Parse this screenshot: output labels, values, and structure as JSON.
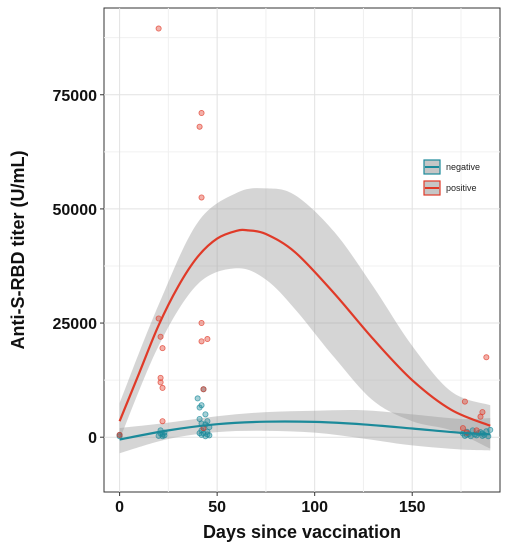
{
  "chart_data": {
    "type": "scatter",
    "xlabel": "Days since vaccination",
    "ylabel": "Anti-S-RBD titer (U/mL)",
    "xlim": [
      -8,
      195
    ],
    "ylim": [
      -12000,
      94000
    ],
    "x_ticks": [
      0,
      50,
      100,
      150
    ],
    "y_ticks": [
      0,
      25000,
      50000,
      75000
    ],
    "x_tick_labels": [
      "0",
      "50",
      "100",
      "150"
    ],
    "y_tick_labels": [
      "0",
      "25000",
      "50000",
      "75000"
    ],
    "grid": true,
    "legend_position": "right",
    "series": [
      {
        "name": "negative",
        "color": "#1b8a9a",
        "points": [
          [
            0,
            200
          ],
          [
            0,
            500
          ],
          [
            20,
            300
          ],
          [
            21,
            800
          ],
          [
            21,
            1500
          ],
          [
            22,
            200
          ],
          [
            22,
            600
          ],
          [
            23,
            1000
          ],
          [
            23,
            400
          ],
          [
            40,
            8500
          ],
          [
            41,
            6500
          ],
          [
            41,
            4000
          ],
          [
            42,
            3000
          ],
          [
            42,
            1500
          ],
          [
            42,
            500
          ],
          [
            43,
            10500
          ],
          [
            43,
            2000
          ],
          [
            43,
            800
          ],
          [
            44,
            200
          ],
          [
            44,
            2800
          ],
          [
            44,
            5000
          ],
          [
            45,
            1200
          ],
          [
            45,
            3500
          ],
          [
            45,
            600
          ],
          [
            46,
            2200
          ],
          [
            46,
            400
          ],
          [
            41,
            900
          ],
          [
            42,
            7000
          ],
          [
            176,
            800
          ],
          [
            177,
            300
          ],
          [
            178,
            1200
          ],
          [
            178,
            500
          ],
          [
            179,
            700
          ],
          [
            180,
            200
          ],
          [
            181,
            1500
          ],
          [
            182,
            600
          ],
          [
            183,
            400
          ],
          [
            184,
            900
          ],
          [
            185,
            1100
          ],
          [
            186,
            300
          ],
          [
            186,
            800
          ],
          [
            187,
            500
          ],
          [
            188,
            1300
          ],
          [
            189,
            200
          ],
          [
            190,
            1600
          ]
        ],
        "trend": [
          [
            0,
            -500
          ],
          [
            25,
            1500
          ],
          [
            50,
            2850
          ],
          [
            75,
            3400
          ],
          [
            100,
            3350
          ],
          [
            125,
            2800
          ],
          [
            150,
            1900
          ],
          [
            175,
            950
          ],
          [
            190,
            650
          ]
        ],
        "band_upper": [
          [
            0,
            2000
          ],
          [
            25,
            3200
          ],
          [
            50,
            4600
          ],
          [
            75,
            5500
          ],
          [
            100,
            5800
          ],
          [
            125,
            5900
          ],
          [
            150,
            5000
          ],
          [
            175,
            4000
          ],
          [
            190,
            4200
          ]
        ],
        "band_lower": [
          [
            0,
            -3500
          ],
          [
            25,
            -400
          ],
          [
            50,
            1100
          ],
          [
            75,
            1400
          ],
          [
            100,
            1000
          ],
          [
            125,
            -300
          ],
          [
            150,
            -1800
          ],
          [
            175,
            -2700
          ],
          [
            190,
            -2900
          ]
        ]
      },
      {
        "name": "positive",
        "color": "#e03a28",
        "points": [
          [
            0,
            500
          ],
          [
            20,
            89500
          ],
          [
            20,
            26000
          ],
          [
            21,
            22000
          ],
          [
            21,
            13000
          ],
          [
            21,
            12000
          ],
          [
            22,
            10800
          ],
          [
            22,
            19500
          ],
          [
            22,
            3500
          ],
          [
            41,
            68000
          ],
          [
            42,
            71000
          ],
          [
            42,
            52500
          ],
          [
            42,
            25000
          ],
          [
            42,
            21000
          ],
          [
            43,
            10500
          ],
          [
            45,
            21500
          ],
          [
            43,
            2000
          ],
          [
            176,
            2000
          ],
          [
            177,
            7800
          ],
          [
            178,
            1000
          ],
          [
            183,
            1500
          ],
          [
            185,
            4500
          ],
          [
            186,
            5500
          ],
          [
            188,
            17500
          ]
        ],
        "trend": [
          [
            0,
            3500
          ],
          [
            10,
            14000
          ],
          [
            20,
            24500
          ],
          [
            30,
            33000
          ],
          [
            40,
            39500
          ],
          [
            50,
            43500
          ],
          [
            60,
            45200
          ],
          [
            66,
            45300
          ],
          [
            75,
            44500
          ],
          [
            90,
            40500
          ],
          [
            110,
            31500
          ],
          [
            130,
            21500
          ],
          [
            150,
            12500
          ],
          [
            170,
            6000
          ],
          [
            190,
            2500
          ]
        ],
        "band_upper": [
          [
            0,
            7500
          ],
          [
            20,
            29000
          ],
          [
            40,
            47000
          ],
          [
            60,
            53500
          ],
          [
            75,
            54500
          ],
          [
            90,
            53000
          ],
          [
            110,
            45000
          ],
          [
            130,
            33000
          ],
          [
            150,
            20000
          ],
          [
            170,
            10000
          ],
          [
            190,
            7000
          ]
        ],
        "band_lower": [
          [
            0,
            -500
          ],
          [
            20,
            20000
          ],
          [
            40,
            33500
          ],
          [
            60,
            37000
          ],
          [
            75,
            34500
          ],
          [
            90,
            28000
          ],
          [
            110,
            17500
          ],
          [
            130,
            8000
          ],
          [
            150,
            3500
          ],
          [
            170,
            1500
          ],
          [
            190,
            -2500
          ]
        ]
      }
    ]
  }
}
